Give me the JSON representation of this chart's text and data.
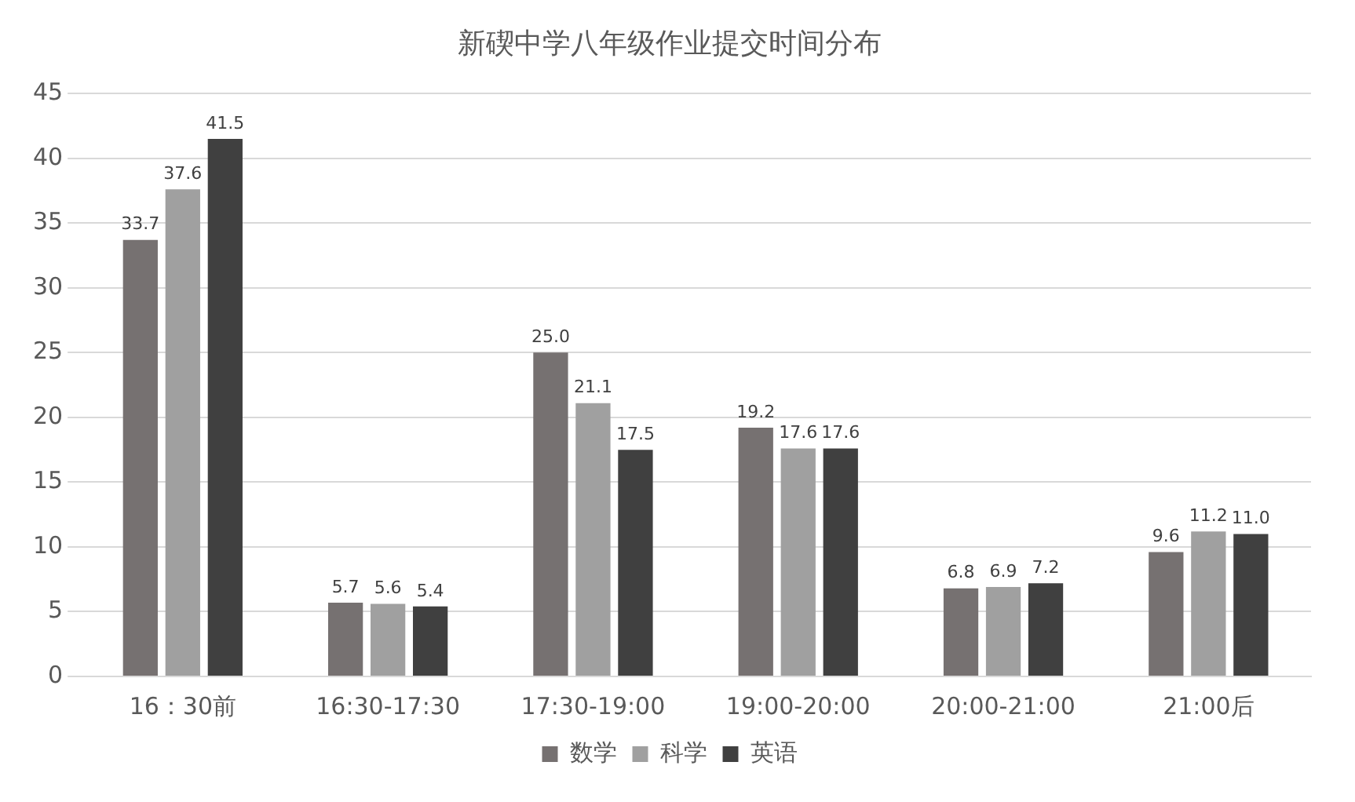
{
  "chart_data": {
    "type": "bar",
    "title": "新碶中学八年级作业提交时间分布",
    "categories": [
      "16：30前",
      "16:30-17:30",
      "17:30-19:00",
      "19:00-20:00",
      "20:00-21:00",
      "21:00后"
    ],
    "series": [
      {
        "name": "数学",
        "color": "#767171",
        "values": [
          33.7,
          5.7,
          25.0,
          19.2,
          6.8,
          9.6
        ]
      },
      {
        "name": "科学",
        "color": "#a0a0a0",
        "values": [
          37.6,
          5.6,
          21.1,
          17.6,
          6.9,
          11.2
        ]
      },
      {
        "name": "英语",
        "color": "#404040",
        "values": [
          41.5,
          5.4,
          17.5,
          17.6,
          7.2,
          11.0
        ]
      }
    ],
    "value_labels": [
      [
        "33.7",
        "5.7",
        "25.0",
        "19.2",
        "6.8",
        "9.6"
      ],
      [
        "37.6",
        "5.6",
        "21.1",
        "17.6",
        "6.9",
        "11.2"
      ],
      [
        "41.5",
        "5.4",
        "17.5",
        "17.6",
        "7.2",
        "11.0"
      ]
    ],
    "ylim": [
      0,
      45
    ],
    "yticks": [
      0,
      5,
      10,
      15,
      20,
      25,
      30,
      35,
      40,
      45
    ],
    "grid": "y",
    "legend": "bottom"
  }
}
